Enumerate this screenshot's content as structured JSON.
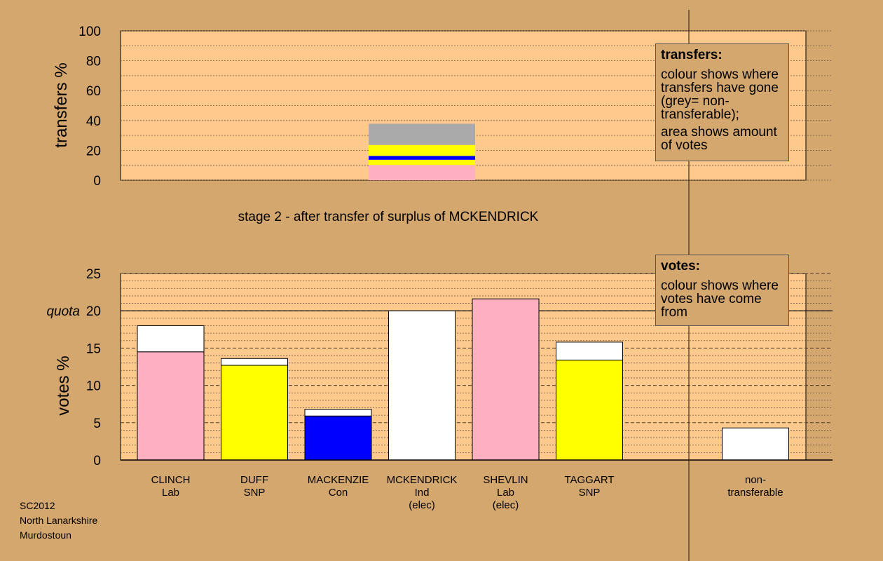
{
  "colors": {
    "background": "#d4a76f",
    "panel": "#fdc98c",
    "Lab": "#ffb0c0",
    "SNP": "#ffff00",
    "Con": "#0000ff",
    "transferred": "#ffffff",
    "non_transferable": "#aaaaaa"
  },
  "stage_caption": "stage 2 - after transfer of surplus of MCKENDRICK",
  "footer": {
    "line1": "SC2012",
    "line2": "North Lanarkshire",
    "line3": "Murdostoun"
  },
  "transfers_legend": {
    "title": "transfers:",
    "text1": "colour shows where transfers have gone (grey= non-transferable);",
    "text2": "area shows amount of votes"
  },
  "votes_legend": {
    "title": "votes:",
    "text1": "colour shows where votes have come from"
  },
  "chart_data": [
    {
      "type": "bar",
      "name": "transfers",
      "ylabel": "transfers %",
      "ylim": [
        0,
        100
      ],
      "yticks": [
        0,
        20,
        40,
        60,
        80,
        100
      ],
      "grid": true,
      "bar_category": "MCKENDRICK",
      "segments": [
        {
          "to": "Lab",
          "value": 10.2
        },
        {
          "to": "SNP",
          "value": 3.5
        },
        {
          "to": "Con",
          "value": 2.6
        },
        {
          "to": "SNP",
          "value": 7.3
        },
        {
          "to": "non-transferable",
          "value": 14.2
        }
      ]
    },
    {
      "type": "bar",
      "name": "votes",
      "ylabel": "votes %",
      "ylim": [
        0,
        25
      ],
      "yticks": [
        0,
        5,
        10,
        15,
        20,
        25
      ],
      "quota": {
        "label": "quota",
        "value": 20
      },
      "grid": true,
      "candidates": [
        {
          "name": "CLINCH",
          "party": "Lab",
          "status": "",
          "first": 14.5,
          "transferred": 3.5
        },
        {
          "name": "DUFF",
          "party": "SNP",
          "status": "",
          "first": 12.7,
          "transferred": 0.9
        },
        {
          "name": "MACKENZIE",
          "party": "Con",
          "status": "",
          "first": 5.9,
          "transferred": 0.9
        },
        {
          "name": "MCKENDRICK",
          "party": "Ind",
          "status": "(elec)",
          "first": 0,
          "transferred": 20.0
        },
        {
          "name": "SHEVLIN",
          "party": "Lab",
          "status": "(elec)",
          "first": 21.6,
          "transferred": 0
        },
        {
          "name": "TAGGART",
          "party": "SNP",
          "status": "",
          "first": 13.4,
          "transferred": 2.4
        }
      ],
      "non_transferable": {
        "label_line1": "non-",
        "label_line2": "transferable",
        "value": 4.3
      }
    }
  ]
}
